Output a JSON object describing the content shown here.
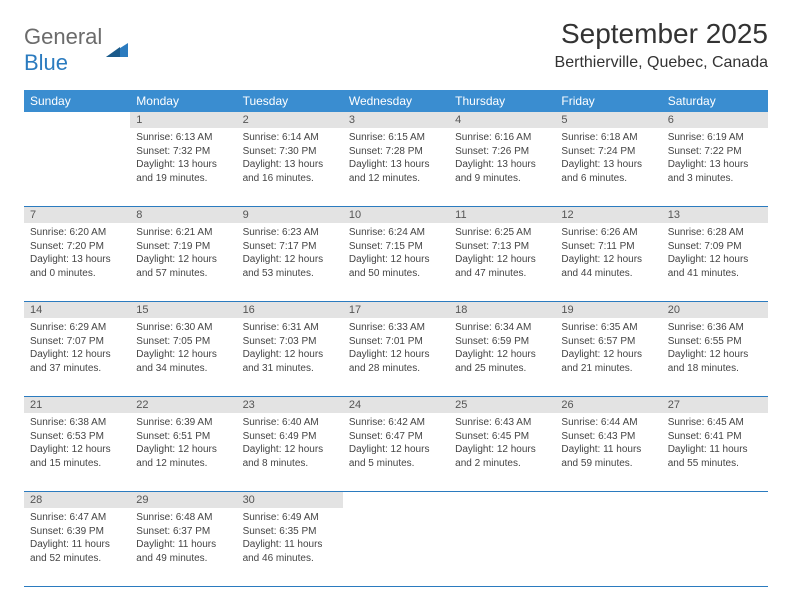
{
  "logo": {
    "part1": "General",
    "part2": "Blue"
  },
  "title": "September 2025",
  "location": "Berthierville, Quebec, Canada",
  "colors": {
    "header_bg": "#3a8dd0",
    "header_text": "#ffffff",
    "border": "#2b7bbf",
    "daynum_bg": "#e3e3e3",
    "text": "#444444",
    "logo_gray": "#6b6b6b",
    "logo_blue": "#2b7bbf",
    "background": "#ffffff"
  },
  "day_labels": [
    "Sunday",
    "Monday",
    "Tuesday",
    "Wednesday",
    "Thursday",
    "Friday",
    "Saturday"
  ],
  "weeks": [
    [
      {
        "n": "",
        "sunrise": "",
        "sunset": "",
        "daylight": ""
      },
      {
        "n": "1",
        "sunrise": "Sunrise: 6:13 AM",
        "sunset": "Sunset: 7:32 PM",
        "daylight": "Daylight: 13 hours and 19 minutes."
      },
      {
        "n": "2",
        "sunrise": "Sunrise: 6:14 AM",
        "sunset": "Sunset: 7:30 PM",
        "daylight": "Daylight: 13 hours and 16 minutes."
      },
      {
        "n": "3",
        "sunrise": "Sunrise: 6:15 AM",
        "sunset": "Sunset: 7:28 PM",
        "daylight": "Daylight: 13 hours and 12 minutes."
      },
      {
        "n": "4",
        "sunrise": "Sunrise: 6:16 AM",
        "sunset": "Sunset: 7:26 PM",
        "daylight": "Daylight: 13 hours and 9 minutes."
      },
      {
        "n": "5",
        "sunrise": "Sunrise: 6:18 AM",
        "sunset": "Sunset: 7:24 PM",
        "daylight": "Daylight: 13 hours and 6 minutes."
      },
      {
        "n": "6",
        "sunrise": "Sunrise: 6:19 AM",
        "sunset": "Sunset: 7:22 PM",
        "daylight": "Daylight: 13 hours and 3 minutes."
      }
    ],
    [
      {
        "n": "7",
        "sunrise": "Sunrise: 6:20 AM",
        "sunset": "Sunset: 7:20 PM",
        "daylight": "Daylight: 13 hours and 0 minutes."
      },
      {
        "n": "8",
        "sunrise": "Sunrise: 6:21 AM",
        "sunset": "Sunset: 7:19 PM",
        "daylight": "Daylight: 12 hours and 57 minutes."
      },
      {
        "n": "9",
        "sunrise": "Sunrise: 6:23 AM",
        "sunset": "Sunset: 7:17 PM",
        "daylight": "Daylight: 12 hours and 53 minutes."
      },
      {
        "n": "10",
        "sunrise": "Sunrise: 6:24 AM",
        "sunset": "Sunset: 7:15 PM",
        "daylight": "Daylight: 12 hours and 50 minutes."
      },
      {
        "n": "11",
        "sunrise": "Sunrise: 6:25 AM",
        "sunset": "Sunset: 7:13 PM",
        "daylight": "Daylight: 12 hours and 47 minutes."
      },
      {
        "n": "12",
        "sunrise": "Sunrise: 6:26 AM",
        "sunset": "Sunset: 7:11 PM",
        "daylight": "Daylight: 12 hours and 44 minutes."
      },
      {
        "n": "13",
        "sunrise": "Sunrise: 6:28 AM",
        "sunset": "Sunset: 7:09 PM",
        "daylight": "Daylight: 12 hours and 41 minutes."
      }
    ],
    [
      {
        "n": "14",
        "sunrise": "Sunrise: 6:29 AM",
        "sunset": "Sunset: 7:07 PM",
        "daylight": "Daylight: 12 hours and 37 minutes."
      },
      {
        "n": "15",
        "sunrise": "Sunrise: 6:30 AM",
        "sunset": "Sunset: 7:05 PM",
        "daylight": "Daylight: 12 hours and 34 minutes."
      },
      {
        "n": "16",
        "sunrise": "Sunrise: 6:31 AM",
        "sunset": "Sunset: 7:03 PM",
        "daylight": "Daylight: 12 hours and 31 minutes."
      },
      {
        "n": "17",
        "sunrise": "Sunrise: 6:33 AM",
        "sunset": "Sunset: 7:01 PM",
        "daylight": "Daylight: 12 hours and 28 minutes."
      },
      {
        "n": "18",
        "sunrise": "Sunrise: 6:34 AM",
        "sunset": "Sunset: 6:59 PM",
        "daylight": "Daylight: 12 hours and 25 minutes."
      },
      {
        "n": "19",
        "sunrise": "Sunrise: 6:35 AM",
        "sunset": "Sunset: 6:57 PM",
        "daylight": "Daylight: 12 hours and 21 minutes."
      },
      {
        "n": "20",
        "sunrise": "Sunrise: 6:36 AM",
        "sunset": "Sunset: 6:55 PM",
        "daylight": "Daylight: 12 hours and 18 minutes."
      }
    ],
    [
      {
        "n": "21",
        "sunrise": "Sunrise: 6:38 AM",
        "sunset": "Sunset: 6:53 PM",
        "daylight": "Daylight: 12 hours and 15 minutes."
      },
      {
        "n": "22",
        "sunrise": "Sunrise: 6:39 AM",
        "sunset": "Sunset: 6:51 PM",
        "daylight": "Daylight: 12 hours and 12 minutes."
      },
      {
        "n": "23",
        "sunrise": "Sunrise: 6:40 AM",
        "sunset": "Sunset: 6:49 PM",
        "daylight": "Daylight: 12 hours and 8 minutes."
      },
      {
        "n": "24",
        "sunrise": "Sunrise: 6:42 AM",
        "sunset": "Sunset: 6:47 PM",
        "daylight": "Daylight: 12 hours and 5 minutes."
      },
      {
        "n": "25",
        "sunrise": "Sunrise: 6:43 AM",
        "sunset": "Sunset: 6:45 PM",
        "daylight": "Daylight: 12 hours and 2 minutes."
      },
      {
        "n": "26",
        "sunrise": "Sunrise: 6:44 AM",
        "sunset": "Sunset: 6:43 PM",
        "daylight": "Daylight: 11 hours and 59 minutes."
      },
      {
        "n": "27",
        "sunrise": "Sunrise: 6:45 AM",
        "sunset": "Sunset: 6:41 PM",
        "daylight": "Daylight: 11 hours and 55 minutes."
      }
    ],
    [
      {
        "n": "28",
        "sunrise": "Sunrise: 6:47 AM",
        "sunset": "Sunset: 6:39 PM",
        "daylight": "Daylight: 11 hours and 52 minutes."
      },
      {
        "n": "29",
        "sunrise": "Sunrise: 6:48 AM",
        "sunset": "Sunset: 6:37 PM",
        "daylight": "Daylight: 11 hours and 49 minutes."
      },
      {
        "n": "30",
        "sunrise": "Sunrise: 6:49 AM",
        "sunset": "Sunset: 6:35 PM",
        "daylight": "Daylight: 11 hours and 46 minutes."
      },
      {
        "n": "",
        "sunrise": "",
        "sunset": "",
        "daylight": ""
      },
      {
        "n": "",
        "sunrise": "",
        "sunset": "",
        "daylight": ""
      },
      {
        "n": "",
        "sunrise": "",
        "sunset": "",
        "daylight": ""
      },
      {
        "n": "",
        "sunrise": "",
        "sunset": "",
        "daylight": ""
      }
    ]
  ]
}
